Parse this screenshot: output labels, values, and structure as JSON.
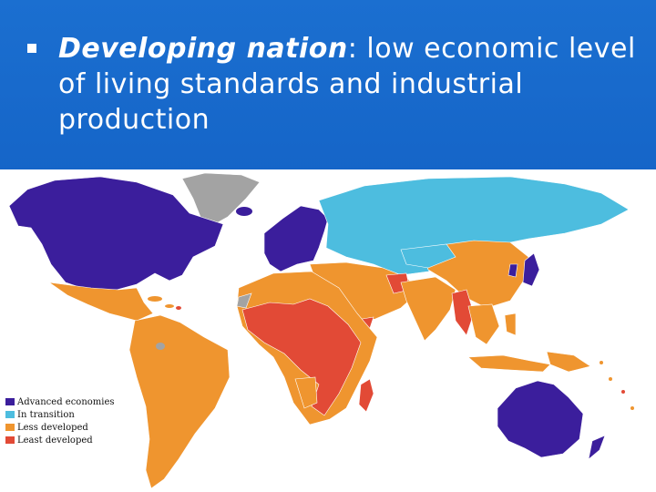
{
  "slide": {
    "bullet": {
      "term": "Developing nation",
      "definition": ": low economic level of living standards and industrial production"
    }
  },
  "map": {
    "legend": [
      {
        "label": "Advanced economies",
        "color": "#3b1e9c"
      },
      {
        "label": "In transition",
        "color": "#4dbddf"
      },
      {
        "label": "Less developed",
        "color": "#ef952f"
      },
      {
        "label": "Least developed",
        "color": "#e24a36"
      }
    ],
    "colors": {
      "no_data": "#a3a3a3",
      "background": "#ffffff"
    }
  }
}
